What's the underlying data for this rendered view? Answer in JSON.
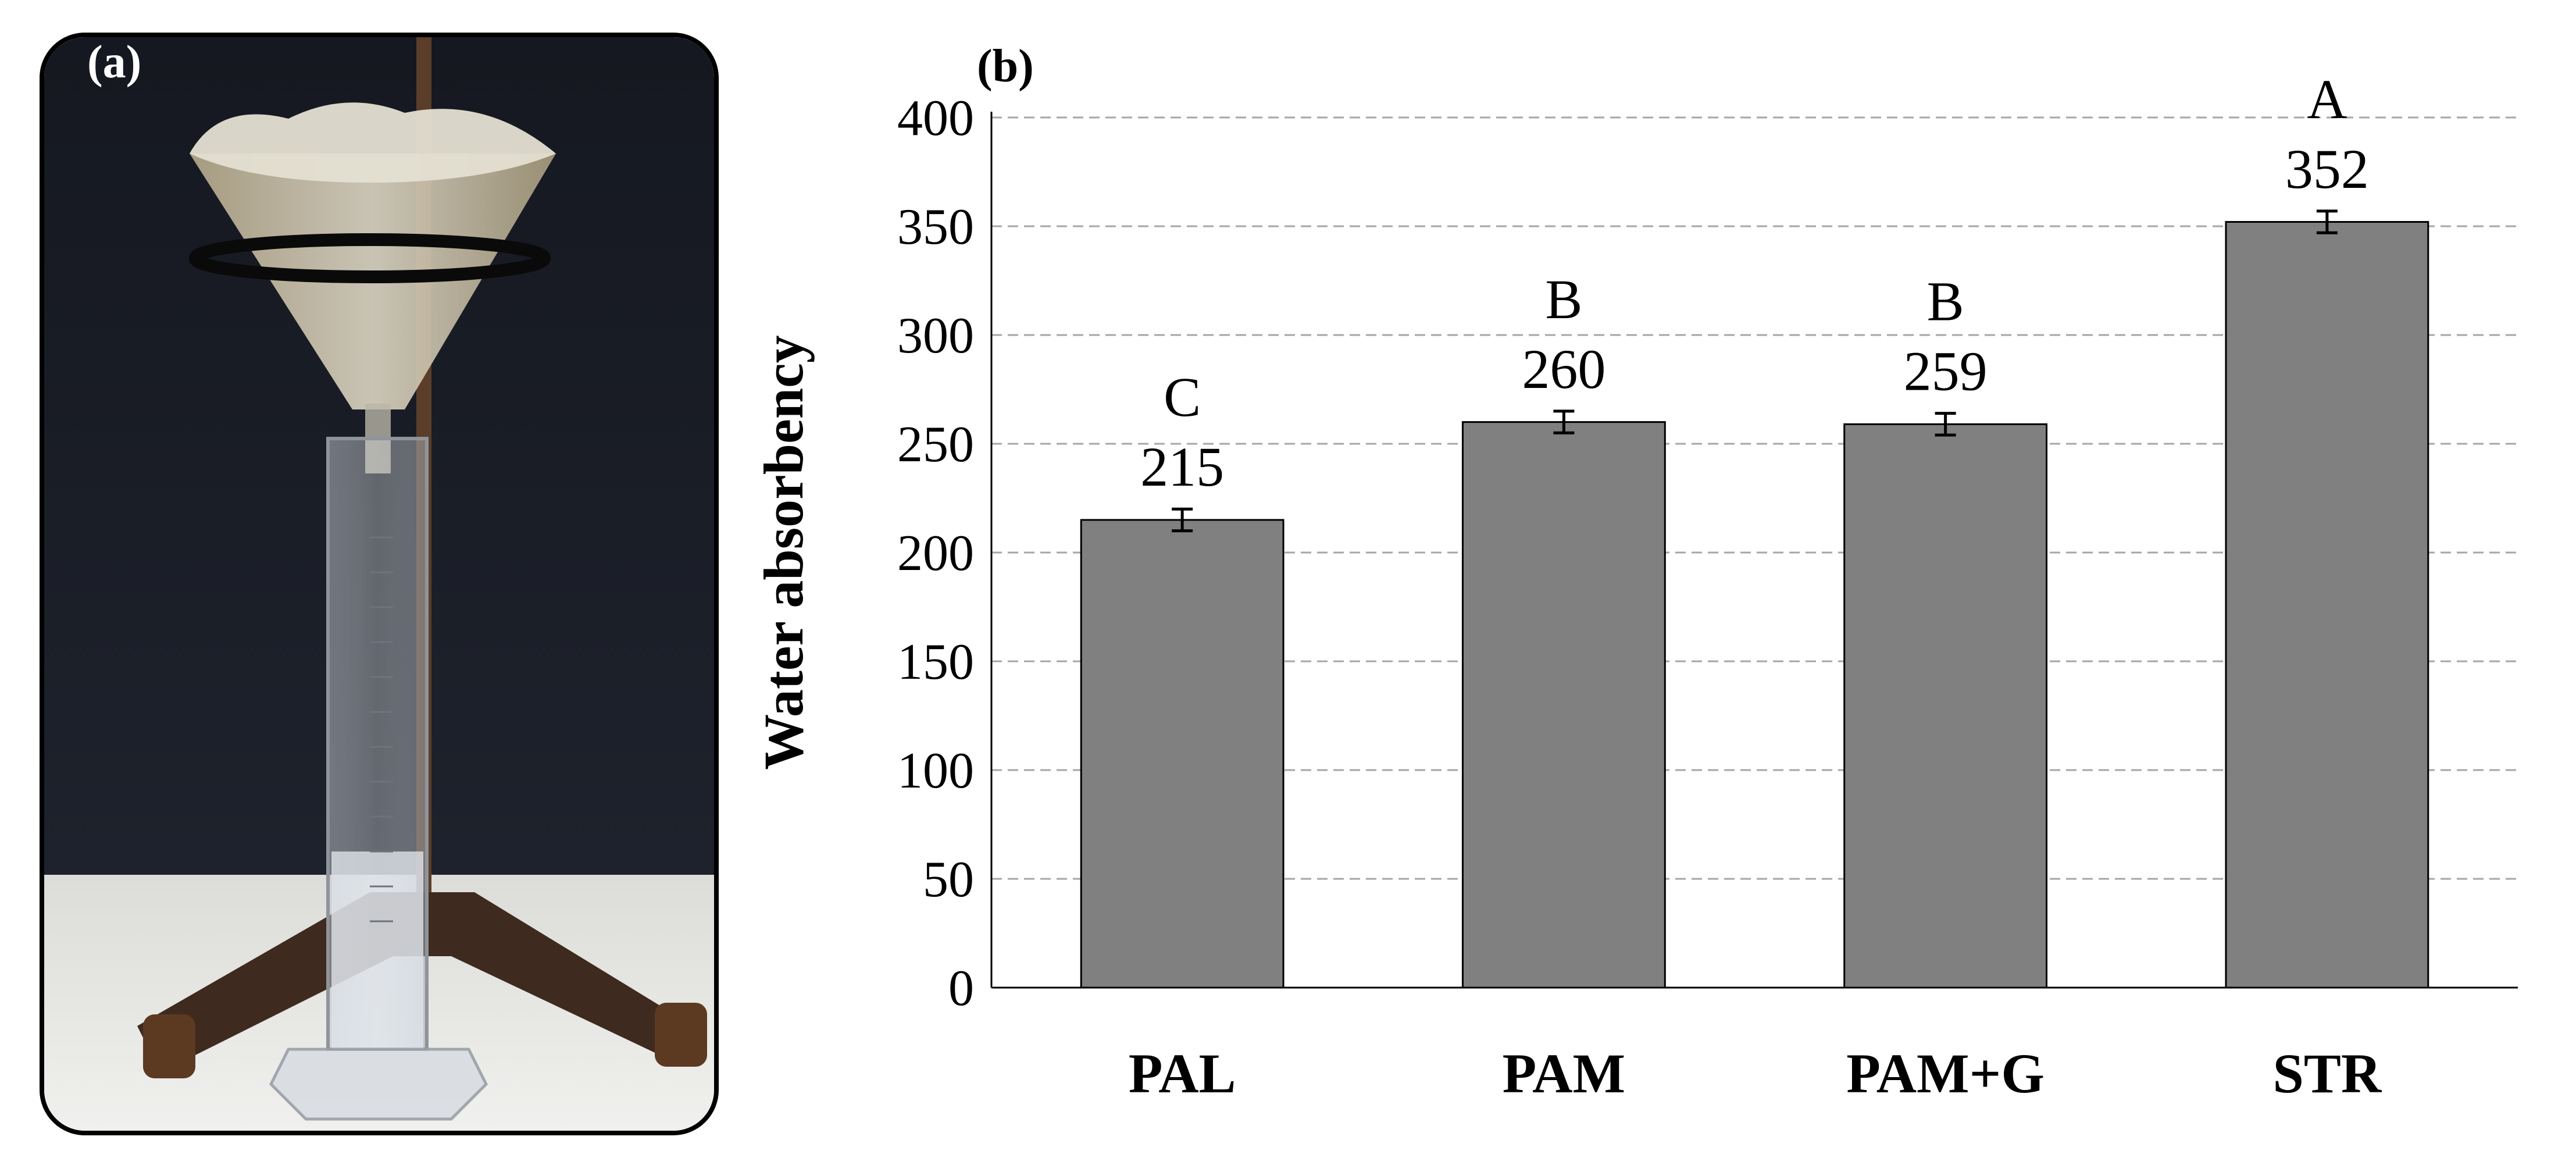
{
  "panel_a": {
    "label": "(a)"
  },
  "chart_data": {
    "type": "bar",
    "panel_label": "(b)",
    "title": "",
    "xlabel": "",
    "ylabel": "Water absorbency",
    "ylim": [
      0,
      400
    ],
    "yticks": [
      0,
      50,
      100,
      150,
      200,
      250,
      300,
      350,
      400
    ],
    "ytick_labels": [
      "0",
      "50",
      "100",
      "150",
      "200",
      "250",
      "300",
      "350",
      "400"
    ],
    "grid": "horizontal-dashed",
    "categories": [
      "PAL",
      "PAM",
      "PAM+G",
      "STR"
    ],
    "values": [
      215,
      260,
      259,
      352
    ],
    "value_labels": [
      "215",
      "260",
      "259",
      "352"
    ],
    "error": [
      5,
      5,
      5,
      5
    ],
    "significance_letters": [
      "C",
      "B",
      "B",
      "A"
    ],
    "bar_color": "#808080",
    "bar_edge_color": "#000000",
    "grid_color": "#a6a6a6"
  }
}
